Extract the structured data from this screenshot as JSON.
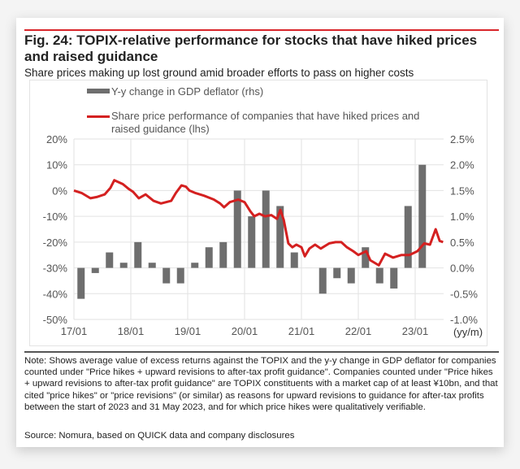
{
  "figure": {
    "title": "Fig. 24: TOPIX-relative performance for stocks that have hiked prices and raised guidance",
    "subtitle": "Share prices making up lost ground amid broader efforts to pass on higher costs",
    "note": "Note: Shows average value of excess returns against the TOPIX and the y-y change in GDP deflator for companies counted under \"Price hikes + upward revisions to after-tax profit guidance\". Companies counted under \"Price hikes + upward revisions to after-tax profit guidance\" are TOPIX constituents with a market cap of at least ¥10bn, and that cited \"price hikes\" or \"price revisions\" (or similar) as reasons for upward revisions to guidance for after-tax profits between the start of 2023 and 31 May 2023, and for which price hikes were qualitatively verifiable.",
    "source": "Source: Nomura, based on QUICK data and company disclosures",
    "colors": {
      "accent_rule": "#d9252b",
      "bar": "#6e6e6e",
      "line": "#d42020",
      "grid": "#e2e2e2",
      "axis_text": "#555555"
    }
  },
  "chart_data": {
    "type": "bar+line",
    "title": "Fig. 24: TOPIX-relative performance for stocks that have hiked prices and raised guidance",
    "xlabel": "(yy/m)",
    "x_ticks": [
      "17/01",
      "18/01",
      "19/01",
      "20/01",
      "21/01",
      "22/01",
      "23/01"
    ],
    "x_range_years": [
      2017.0,
      2023.5
    ],
    "left_axis": {
      "label": "Share price performance (lhs)",
      "ticks": [
        "20%",
        "10%",
        "0%",
        "-10%",
        "-20%",
        "-30%",
        "-40%",
        "-50%"
      ],
      "ylim": [
        -50,
        20
      ],
      "unit": "%"
    },
    "right_axis": {
      "label": "Y-y change in GDP deflator (rhs)",
      "ticks": [
        "2.5%",
        "2.0%",
        "1.5%",
        "1.0%",
        "0.5%",
        "0.0%",
        "-0.5%",
        "-1.0%"
      ],
      "ylim": [
        -1.0,
        2.5
      ],
      "unit": "%"
    },
    "grid": true,
    "legend": {
      "placement": "top",
      "entries": [
        {
          "name": "Y-y change in GDP deflator (rhs)",
          "kind": "bar"
        },
        {
          "name": "Share price performance of companies that have hiked prices and raised guidance (lhs)",
          "kind": "line"
        }
      ]
    },
    "series": [
      {
        "name": "Y-y change in GDP deflator (rhs)",
        "type": "bar",
        "axis": "right",
        "x": [
          "17Q1",
          "17Q2",
          "17Q3",
          "17Q4",
          "18Q1",
          "18Q2",
          "18Q3",
          "18Q4",
          "19Q1",
          "19Q2",
          "19Q3",
          "19Q4",
          "20Q1",
          "20Q2",
          "20Q3",
          "20Q4",
          "21Q1",
          "21Q2",
          "21Q3",
          "21Q4",
          "22Q1",
          "22Q2",
          "22Q3",
          "22Q4",
          "23Q1"
        ],
        "values": [
          -0.6,
          -0.1,
          0.3,
          0.1,
          0.5,
          0.1,
          -0.3,
          -0.3,
          0.1,
          0.4,
          0.5,
          1.5,
          1.0,
          1.5,
          1.2,
          0.3,
          0.0,
          -0.5,
          -0.2,
          -0.3,
          0.4,
          -0.3,
          -0.4,
          1.2,
          2.0
        ]
      },
      {
        "name": "Share price performance of companies that have hiked prices and raised guidance (lhs)",
        "type": "line",
        "axis": "left",
        "x": [
          2017.0,
          2017.14,
          2017.29,
          2017.4,
          2017.54,
          2017.64,
          2017.71,
          2017.86,
          2017.97,
          2018.04,
          2018.14,
          2018.26,
          2018.4,
          2018.53,
          2018.71,
          2018.79,
          2018.89,
          2018.97,
          2019.03,
          2019.14,
          2019.29,
          2019.46,
          2019.57,
          2019.64,
          2019.74,
          2019.89,
          2020.0,
          2020.1,
          2020.17,
          2020.26,
          2020.36,
          2020.47,
          2020.57,
          2020.63,
          2020.69,
          2020.77,
          2020.84,
          2020.91,
          2021.0,
          2021.06,
          2021.14,
          2021.24,
          2021.34,
          2021.49,
          2021.6,
          2021.7,
          2021.8,
          2021.91,
          2022.0,
          2022.14,
          2022.21,
          2022.36,
          2022.47,
          2022.61,
          2022.76,
          2022.9,
          2023.04,
          2023.16,
          2023.26,
          2023.36,
          2023.43,
          2023.49
        ],
        "values": [
          0,
          -1,
          -3,
          -2.5,
          -1.5,
          1,
          4,
          2.5,
          0.5,
          -0.5,
          -3,
          -1.5,
          -4,
          -5,
          -4,
          -1,
          2,
          1.5,
          0,
          -1,
          -2,
          -3.5,
          -5,
          -6.5,
          -4.5,
          -3.5,
          -4.5,
          -8,
          -10,
          -9,
          -10,
          -9.5,
          -11,
          -7.5,
          -11.5,
          -20.5,
          -22,
          -21,
          -22,
          -25.5,
          -22.5,
          -21,
          -22.5,
          -20.5,
          -20,
          -20,
          -22,
          -23.5,
          -25,
          -23.5,
          -27,
          -29,
          -24.5,
          -26,
          -25,
          -25,
          -23.5,
          -20.5,
          -21,
          -15,
          -19.5,
          -20
        ]
      }
    ]
  }
}
